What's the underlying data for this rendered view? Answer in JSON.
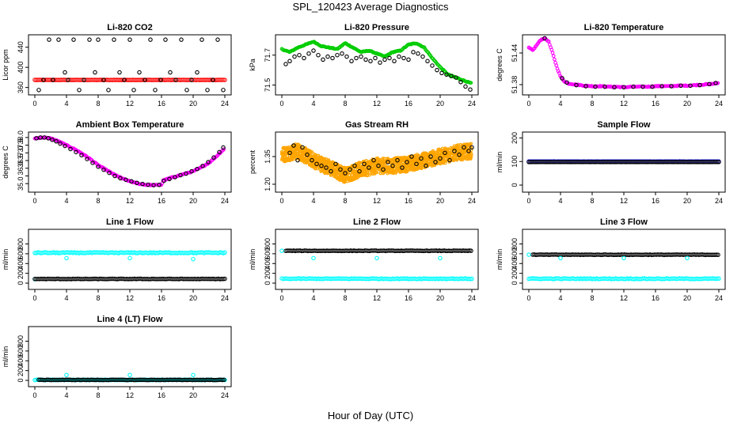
{
  "figure": {
    "title": "SPL_120423  Average Diagnostics",
    "xlabel": "Hour of Day (UTC)"
  },
  "colors": {
    "black": "#000000",
    "red": "#ff0000",
    "green": "#00cc00",
    "magenta": "#ff00ff",
    "orange": "#ffa500",
    "blue": "#0000ff",
    "cyan": "#00ffff"
  },
  "chart_data": [
    {
      "type": "scatter",
      "title": "Li-820 CO2",
      "ylabel": "Licor ppm",
      "xlim": [
        0,
        24
      ],
      "ylim": [
        350,
        460
      ],
      "xticks": [
        0,
        4,
        8,
        12,
        16,
        20,
        24
      ],
      "yticks": [
        360,
        400,
        440
      ],
      "series": [
        {
          "color": "red",
          "kind": "dense-band",
          "x_range": [
            0,
            24
          ],
          "center": [
            375
          ],
          "spread": 2
        },
        {
          "color": "black",
          "kind": "points",
          "x": [
            0.5,
            1.1,
            1.8,
            2.3,
            3.0,
            3.8,
            4.2,
            4.9,
            5.6,
            6.2,
            6.9,
            7.6,
            8.0,
            8.7,
            9.3,
            10.0,
            10.7,
            11.3,
            12.0,
            12.5,
            13.2,
            13.9,
            14.6,
            15.2,
            15.9,
            16.5,
            17.1,
            17.8,
            18.5,
            19.2,
            19.8,
            20.5,
            21.1,
            21.8,
            22.5,
            23.1,
            23.8
          ],
          "y": [
            355,
            375,
            455,
            375,
            455,
            390,
            375,
            455,
            355,
            375,
            455,
            390,
            455,
            375,
            355,
            455,
            390,
            375,
            455,
            355,
            390,
            375,
            455,
            355,
            375,
            455,
            390,
            375,
            455,
            355,
            375,
            390,
            455,
            355,
            375,
            455,
            355
          ]
        }
      ]
    },
    {
      "type": "scatter",
      "title": "Li-820 Pressure",
      "ylabel": "kPa",
      "xlim": [
        0,
        24
      ],
      "ylim": [
        71.45,
        71.82
      ],
      "xticks": [
        0,
        4,
        8,
        12,
        16,
        20,
        24
      ],
      "yticks": [
        71.5,
        71.7
      ],
      "series": [
        {
          "color": "green",
          "kind": "dense-line",
          "x": [
            0,
            1,
            2,
            3,
            4,
            5,
            6,
            7,
            8,
            9,
            10,
            11,
            12,
            13,
            14,
            15,
            16,
            17,
            18,
            19,
            20,
            21,
            22,
            23,
            24
          ],
          "y": [
            71.74,
            71.72,
            71.75,
            71.77,
            71.79,
            71.76,
            71.75,
            71.74,
            71.78,
            71.75,
            71.72,
            71.73,
            71.71,
            71.69,
            71.72,
            71.73,
            71.77,
            71.78,
            71.75,
            71.68,
            71.62,
            71.57,
            71.55,
            71.53,
            71.51
          ]
        },
        {
          "color": "black",
          "kind": "points",
          "x": [
            0.5,
            1.0,
            1.6,
            2.2,
            2.8,
            3.4,
            4.0,
            4.6,
            5.2,
            5.8,
            6.4,
            7.0,
            7.6,
            8.2,
            8.8,
            9.4,
            10.0,
            10.6,
            11.2,
            11.8,
            12.4,
            13.0,
            13.6,
            14.2,
            14.8,
            15.4,
            16.0,
            16.6,
            17.2,
            17.8,
            18.4,
            19.0,
            19.6,
            20.2,
            20.8,
            21.4,
            22.0,
            22.6,
            23.2,
            23.8
          ],
          "y": [
            71.64,
            71.66,
            71.69,
            71.7,
            71.68,
            71.71,
            71.73,
            71.7,
            71.67,
            71.69,
            71.68,
            71.7,
            71.71,
            71.69,
            71.66,
            71.68,
            71.69,
            71.67,
            71.66,
            71.68,
            71.65,
            71.67,
            71.68,
            71.66,
            71.69,
            71.68,
            71.67,
            71.72,
            71.71,
            71.69,
            71.66,
            71.63,
            71.6,
            71.58,
            71.57,
            71.56,
            71.55,
            71.52,
            71.49,
            71.47
          ]
        }
      ]
    },
    {
      "type": "scatter",
      "title": "Li-820 Temperature",
      "ylabel": "degrees C",
      "xlim": [
        0,
        24
      ],
      "ylim": [
        51.365,
        51.47
      ],
      "xticks": [
        0,
        4,
        8,
        12,
        16,
        20,
        24
      ],
      "yticks": [
        51.38,
        51.44
      ],
      "series": [
        {
          "color": "magenta",
          "kind": "dense-line",
          "x": [
            0,
            0.5,
            1,
            1.5,
            2,
            2.5,
            3,
            3.5,
            4,
            4.5,
            5,
            6,
            7,
            8,
            9,
            10,
            11,
            12,
            13,
            14,
            15,
            16,
            17,
            18,
            19,
            20,
            21,
            22,
            23,
            24
          ],
          "y": [
            51.45,
            51.445,
            51.455,
            51.465,
            51.468,
            51.462,
            51.44,
            51.415,
            51.395,
            51.386,
            51.382,
            51.38,
            51.378,
            51.377,
            51.377,
            51.376,
            51.376,
            51.375,
            51.376,
            51.376,
            51.376,
            51.377,
            51.377,
            51.377,
            51.378,
            51.378,
            51.379,
            51.38,
            51.381,
            51.383
          ]
        },
        {
          "color": "black",
          "kind": "points",
          "x": [
            2.0,
            4.2,
            4.8,
            6.0,
            7.2,
            8.4,
            9.6,
            10.8,
            12.0,
            13.2,
            14.4,
            15.6,
            16.8,
            18.0,
            19.2,
            20.4,
            21.6,
            22.8,
            23.6
          ],
          "y": [
            51.468,
            51.392,
            51.384,
            51.379,
            51.377,
            51.376,
            51.376,
            51.375,
            51.375,
            51.376,
            51.376,
            51.376,
            51.377,
            51.377,
            51.378,
            51.378,
            51.379,
            51.381,
            51.383
          ]
        }
      ]
    },
    {
      "type": "scatter",
      "title": "Ambient Box Temperature",
      "ylabel": "degrees C",
      "xlim": [
        0,
        24
      ],
      "ylim": [
        34.6,
        38.2
      ],
      "xticks": [
        0,
        4,
        8,
        12,
        16,
        20,
        24
      ],
      "yticks": [
        35.0,
        35.5,
        36.0,
        36.5,
        37.0,
        37.5,
        38.0
      ],
      "yticklabels": [
        "35.0",
        "",
        "36.0",
        "36.5",
        "37.0",
        "37.5",
        "38.0"
      ],
      "series": [
        {
          "color": "magenta",
          "kind": "dense-line",
          "x": [
            0,
            1,
            2,
            3,
            4,
            5,
            6,
            7,
            8,
            9,
            10,
            11,
            12,
            13,
            14,
            15,
            16,
            16.2,
            17,
            18,
            19,
            20,
            21,
            22,
            23,
            24
          ],
          "y": [
            37.95,
            38.0,
            37.95,
            37.75,
            37.5,
            37.25,
            36.95,
            36.6,
            36.2,
            35.9,
            35.6,
            35.35,
            35.15,
            35.0,
            34.92,
            34.9,
            34.92,
            35.2,
            35.35,
            35.5,
            35.65,
            35.8,
            36.05,
            36.35,
            36.8,
            37.3
          ]
        },
        {
          "color": "black",
          "kind": "points",
          "x": [
            0.2,
            0.7,
            1.2,
            1.7,
            2.2,
            2.7,
            3.2,
            3.8,
            4.5,
            5.2,
            5.9,
            6.6,
            7.3,
            8.0,
            8.7,
            9.4,
            10.1,
            10.8,
            11.5,
            12.2,
            12.9,
            13.6,
            14.3,
            15.0,
            15.7,
            16.3,
            17.0,
            17.7,
            18.4,
            19.1,
            19.8,
            20.5,
            21.2,
            21.9,
            22.6,
            23.3,
            23.8
          ],
          "y": [
            37.95,
            38.0,
            38.0,
            37.95,
            37.85,
            37.75,
            37.6,
            37.45,
            37.25,
            37.05,
            36.85,
            36.6,
            36.35,
            36.1,
            35.9,
            35.7,
            35.5,
            35.35,
            35.25,
            35.15,
            35.05,
            34.98,
            34.93,
            34.9,
            34.92,
            35.18,
            35.3,
            35.42,
            35.55,
            35.65,
            35.8,
            35.95,
            36.15,
            36.4,
            36.7,
            37.05,
            37.35
          ]
        }
      ]
    },
    {
      "type": "scatter",
      "title": "Gas Stream RH",
      "ylabel": "percent",
      "xlim": [
        0,
        24
      ],
      "ylim": [
        1.17,
        1.47
      ],
      "xticks": [
        0,
        4,
        8,
        12,
        16,
        20,
        24
      ],
      "yticks": [
        1.2,
        1.35
      ],
      "yticklabels": [
        "1.20",
        "1.35"
      ],
      "series": [
        {
          "color": "orange",
          "kind": "noisy-band",
          "x": [
            0,
            2,
            4,
            6,
            8,
            10,
            12,
            14,
            16,
            18,
            20,
            22,
            24
          ],
          "y": [
            1.36,
            1.38,
            1.33,
            1.29,
            1.25,
            1.28,
            1.3,
            1.3,
            1.31,
            1.33,
            1.35,
            1.37,
            1.38
          ],
          "spread": 0.06
        },
        {
          "color": "black",
          "kind": "points",
          "x": [
            1.0,
            1.5,
            2.0,
            2.6,
            3.2,
            3.8,
            4.4,
            5.0,
            5.6,
            6.2,
            6.8,
            7.4,
            8.0,
            8.6,
            9.2,
            9.8,
            10.4,
            11.0,
            11.6,
            12.2,
            12.8,
            13.4,
            14.0,
            14.6,
            15.2,
            15.8,
            16.4,
            17.0,
            17.6,
            18.2,
            18.8,
            19.4,
            20.0,
            20.6,
            21.2,
            21.8,
            22.4,
            23.0,
            23.6,
            24.0
          ],
          "y": [
            1.37,
            1.41,
            1.33,
            1.4,
            1.36,
            1.33,
            1.31,
            1.3,
            1.29,
            1.27,
            1.31,
            1.28,
            1.26,
            1.28,
            1.3,
            1.27,
            1.31,
            1.29,
            1.33,
            1.3,
            1.28,
            1.32,
            1.3,
            1.33,
            1.29,
            1.32,
            1.35,
            1.31,
            1.34,
            1.3,
            1.35,
            1.32,
            1.34,
            1.37,
            1.33,
            1.38,
            1.36,
            1.4,
            1.38,
            1.4
          ]
        }
      ]
    },
    {
      "type": "scatter",
      "title": "Sample Flow",
      "ylabel": "ml/min",
      "xlim": [
        0,
        24
      ],
      "ylim": [
        -20,
        215
      ],
      "xticks": [
        0,
        4,
        8,
        12,
        16,
        20,
        24
      ],
      "yticks": [
        0,
        100,
        200
      ],
      "series": [
        {
          "color": "blue",
          "kind": "dense-band",
          "x_range": [
            0,
            24
          ],
          "center": [
            100
          ],
          "spread": 1
        },
        {
          "color": "black",
          "kind": "dense-band",
          "x_range": [
            0,
            24
          ],
          "center": [
            98
          ],
          "spread": 1
        }
      ]
    },
    {
      "type": "scatter",
      "title": "Line 1 Flow",
      "ylabel": "ml/min",
      "xlim": [
        0,
        24
      ],
      "ylim": [
        -80,
        1050
      ],
      "xticks": [
        0,
        4,
        8,
        12,
        16,
        20,
        24
      ],
      "yticks": [
        0,
        200,
        400,
        600,
        800
      ],
      "series": [
        {
          "color": "cyan",
          "kind": "dense-band",
          "x_range": [
            0,
            24
          ],
          "center": [
            620
          ],
          "spread": 8,
          "outliers_x": [
            4,
            12,
            20
          ],
          "outliers_y": [
            510,
            510,
            490
          ]
        },
        {
          "color": "cyan",
          "kind": "points",
          "x": [
            0.0
          ],
          "y": [
            80
          ]
        },
        {
          "color": "black",
          "kind": "dense-band",
          "x_range": [
            0,
            24
          ],
          "center": [
            85
          ],
          "spread": 4
        }
      ]
    },
    {
      "type": "scatter",
      "title": "Line 2 Flow",
      "ylabel": "ml/min",
      "xlim": [
        0,
        24
      ],
      "ylim": [
        -80,
        1050
      ],
      "xticks": [
        0,
        4,
        8,
        12,
        16,
        20,
        24
      ],
      "yticks": [
        0,
        200,
        400,
        600,
        800
      ],
      "series": [
        {
          "color": "black",
          "kind": "dense-band",
          "x_range": [
            0.5,
            24
          ],
          "center": [
            660
          ],
          "spread": 4
        },
        {
          "color": "cyan",
          "kind": "dense-band",
          "x_range": [
            0,
            24
          ],
          "center": [
            90
          ],
          "spread": 6,
          "outliers_x": [
            0,
            4,
            12,
            20
          ],
          "outliers_y": [
            660,
            510,
            510,
            510
          ]
        }
      ]
    },
    {
      "type": "scatter",
      "title": "Line 3 Flow",
      "ylabel": "ml/min",
      "xlim": [
        0,
        24
      ],
      "ylim": [
        -80,
        1050
      ],
      "xticks": [
        0,
        4,
        8,
        12,
        16,
        20,
        24
      ],
      "yticks": [
        0,
        200,
        400,
        600,
        800
      ],
      "series": [
        {
          "color": "black",
          "kind": "dense-band",
          "x_range": [
            0.5,
            24
          ],
          "center": [
            580
          ],
          "spread": 4
        },
        {
          "color": "cyan",
          "kind": "dense-band",
          "x_range": [
            0,
            24
          ],
          "center": [
            90
          ],
          "spread": 6,
          "outliers_x": [
            0,
            4,
            12,
            20
          ],
          "outliers_y": [
            580,
            510,
            510,
            510
          ]
        }
      ]
    },
    {
      "type": "scatter",
      "title": "Line 4 (LT) Flow",
      "ylabel": "ml/min",
      "xlim": [
        0,
        24
      ],
      "ylim": [
        -80,
        1050
      ],
      "xticks": [
        0,
        4,
        8,
        12,
        16,
        20,
        24
      ],
      "yticks": [
        0,
        200,
        400,
        600,
        800
      ],
      "series": [
        {
          "color": "cyan",
          "kind": "dense-band",
          "x_range": [
            0,
            24
          ],
          "center": [
            10
          ],
          "spread": 4,
          "outliers_x": [
            4,
            12,
            20
          ],
          "outliers_y": [
            110,
            110,
            110
          ]
        },
        {
          "color": "black",
          "kind": "dense-band",
          "x_range": [
            0.5,
            24
          ],
          "center": [
            10
          ],
          "spread": 3
        }
      ]
    }
  ]
}
